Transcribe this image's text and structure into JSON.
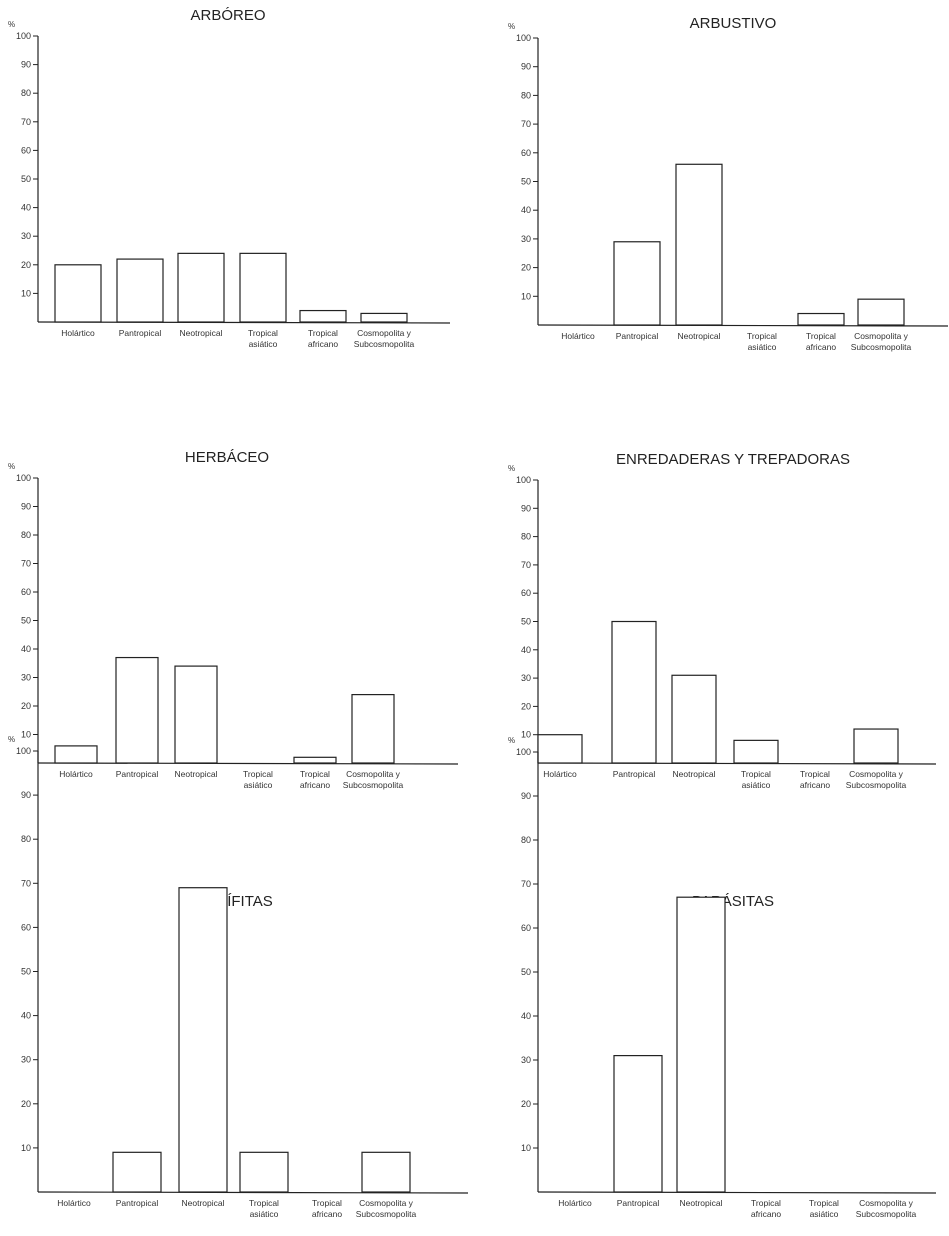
{
  "unit_label": "%",
  "chart_data": [
    {
      "type": "bar",
      "title": "ARBÓREO",
      "categories": [
        "Holártico",
        "Pantropical",
        "Neotropical",
        "Tropical\nasiático",
        "Tropical\nafricano",
        "Cosmopolita y\nSubcosmopolita"
      ],
      "values": [
        20,
        22,
        24,
        24,
        4,
        3
      ],
      "ylim": [
        0,
        100
      ],
      "yticks": [
        10,
        20,
        30,
        40,
        50,
        60,
        70,
        80,
        90,
        100
      ]
    },
    {
      "type": "bar",
      "title": "ARBUSTIVO",
      "categories": [
        "Holártico",
        "Pantropical",
        "Neotropical",
        "Tropical\nasiático",
        "Tropical\nafricano",
        "Cosmopolita y\nSubcosmopolita"
      ],
      "values": [
        0,
        29,
        56,
        0,
        4,
        9
      ],
      "ylim": [
        0,
        100
      ],
      "yticks": [
        10,
        20,
        30,
        40,
        50,
        60,
        70,
        80,
        90,
        100
      ]
    },
    {
      "type": "bar",
      "title": "HERBÁCEO",
      "categories": [
        "Holártico",
        "Pantropical",
        "Neotropical",
        "Tropical\nasiático",
        "Tropical\nafricano",
        "Cosmopolita y\nSubcosmopolita"
      ],
      "values": [
        6,
        37,
        34,
        0,
        2,
        24
      ],
      "ylim": [
        0,
        100
      ],
      "yticks": [
        10,
        20,
        30,
        40,
        50,
        60,
        70,
        80,
        90,
        100
      ]
    },
    {
      "type": "bar",
      "title": "ENREDADERAS Y TREPADORAS",
      "categories": [
        "Holártico",
        "Pantropical",
        "Neotropical",
        "Tropical\nasiático",
        "Tropical\nafricano",
        "Cosmopolita y\nSubcosmopolita"
      ],
      "values": [
        10,
        50,
        31,
        8,
        0,
        12
      ],
      "ylim": [
        0,
        100
      ],
      "yticks": [
        10,
        20,
        30,
        40,
        50,
        60,
        70,
        80,
        90,
        100
      ]
    },
    {
      "type": "bar",
      "title": "EPÍFITAS",
      "categories": [
        "Holártico",
        "Pantropical",
        "Neotropical",
        "Tropical\nasiático",
        "Tropical\nafricano",
        "Cosmopolita y\nSubcosmopolita"
      ],
      "values": [
        0,
        9,
        69,
        9,
        0,
        9
      ],
      "ylim": [
        0,
        100
      ],
      "yticks": [
        10,
        20,
        30,
        40,
        50,
        60,
        70,
        80,
        90,
        100
      ]
    },
    {
      "type": "bar",
      "title": "PARÁSITAS",
      "categories": [
        "Holártico",
        "Pantropical",
        "Neotropical",
        "Tropical\nafricano",
        "Tropical\nasiático",
        "Cosmopolita y\nSubcosmopolita"
      ],
      "values": [
        0,
        31,
        67,
        0,
        0,
        0
      ],
      "ylim": [
        0,
        100
      ],
      "yticks": [
        10,
        20,
        30,
        40,
        50,
        60,
        70,
        80,
        90,
        100
      ]
    }
  ]
}
